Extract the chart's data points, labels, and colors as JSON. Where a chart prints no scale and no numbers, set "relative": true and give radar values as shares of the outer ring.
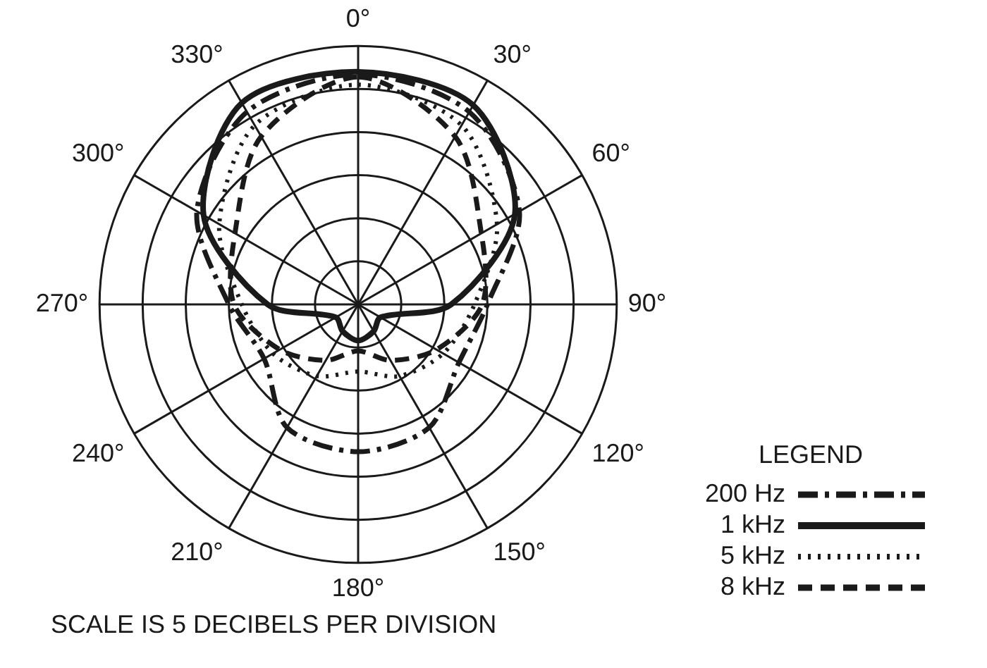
{
  "chart_data": {
    "type": "radar",
    "relative": true,
    "grid": true,
    "marker": "none",
    "legend": "bottom right",
    "legend_title": "LEGEND",
    "categories": [
      "0°",
      "30°",
      "60°",
      "90°",
      "120°",
      "150°",
      "180°",
      "210°",
      "240°",
      "270°",
      "300°",
      "330°"
    ],
    "series": [
      {
        "name": "200 Hz",
        "color": "#1a1a1a",
        "line_style": "dashdot",
        "values": [
          0.89,
          0.86,
          0.72,
          0.5,
          0.45,
          0.55,
          0.57,
          0.55,
          0.42,
          0.5,
          0.72,
          0.86
        ]
      },
      {
        "name": "1 kHz",
        "color": "#1a1a1a",
        "line_style": "solid",
        "values": [
          0.9,
          0.89,
          0.7,
          0.36,
          0.1,
          0.12,
          0.14,
          0.12,
          0.1,
          0.35,
          0.69,
          0.9
        ]
      },
      {
        "name": "5 kHz",
        "color": "#1a1a1a",
        "line_style": "dotted",
        "values": [
          0.85,
          0.8,
          0.62,
          0.45,
          0.38,
          0.32,
          0.26,
          0.32,
          0.38,
          0.45,
          0.62,
          0.8
        ]
      },
      {
        "name": "8 kHz",
        "color": "#1a1a1a",
        "line_style": "dashed",
        "values": [
          0.88,
          0.75,
          0.55,
          0.48,
          0.35,
          0.25,
          0.18,
          0.25,
          0.35,
          0.48,
          0.55,
          0.75
        ]
      }
    ],
    "annotations": [
      "SCALE IS 5 DECIBELS PER DIVISION"
    ]
  }
}
